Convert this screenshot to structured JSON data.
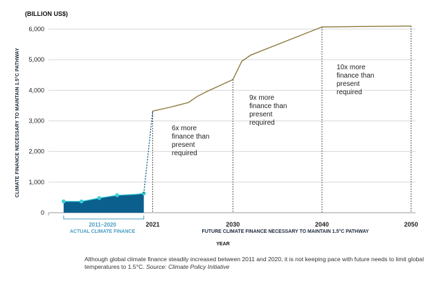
{
  "chart_data": {
    "type": "area",
    "title": "",
    "unit_label": "(BILLION US$)",
    "ylabel": "CLIMATE FINANCE NECESSARY TO MAINTAIN 1.5°C PATHWAY",
    "xlabel": "YEAR",
    "ylim": [
      0,
      6000
    ],
    "yticks": [
      "0",
      "1,000",
      "2,000",
      "3,000",
      "4,000",
      "5,000",
      "6,000"
    ],
    "xticks": [
      "2021",
      "2030",
      "2040",
      "2050"
    ],
    "grid": true,
    "series": [
      {
        "name": "ACTUAL CLIMATE FINANCE",
        "x": [
          2011,
          2013,
          2015,
          2017,
          2019,
          2020
        ],
        "y": [
          370,
          370,
          480,
          570,
          600,
          630
        ]
      },
      {
        "name": "FUTURE CLIMATE FINANCE NECESSARY TO MAINTAIN 1.5°C PATHWAY",
        "x": [
          2021,
          2023,
          2025,
          2026,
          2027,
          2030,
          2031,
          2032,
          2040,
          2050
        ],
        "y": [
          3320,
          3450,
          3600,
          3800,
          3950,
          4350,
          4950,
          5150,
          6070,
          6100
        ]
      }
    ],
    "period_label": "2011–2020",
    "period_sublabel": "ACTUAL CLIMATE FINANCE",
    "future_label": "FUTURE CLIMATE FINANCE NECESSARY TO MAINTAIN 1.5°C PATHWAY",
    "annotations": [
      {
        "year": 2021,
        "text": "6x more\nfinance than\npresent\nrequired"
      },
      {
        "year": 2030,
        "text": "9x more\nfinance than\npresent\nrequired"
      },
      {
        "year": 2040,
        "text": "10x more\nfinance than\npresent\nrequired"
      }
    ],
    "colors": {
      "actual_fill": "#0b5f8d",
      "actual_markers": "#3ad0d6",
      "future_line": "#8a7a3a",
      "grid": "#d7d7d7"
    }
  },
  "caption": {
    "text": "Although global climate finance steadily increased between 2011 and 2020, it is not keeping pace with future needs to limit global temperatures to 1.5°C.",
    "source": "Source: Climate Policy Initiative"
  }
}
